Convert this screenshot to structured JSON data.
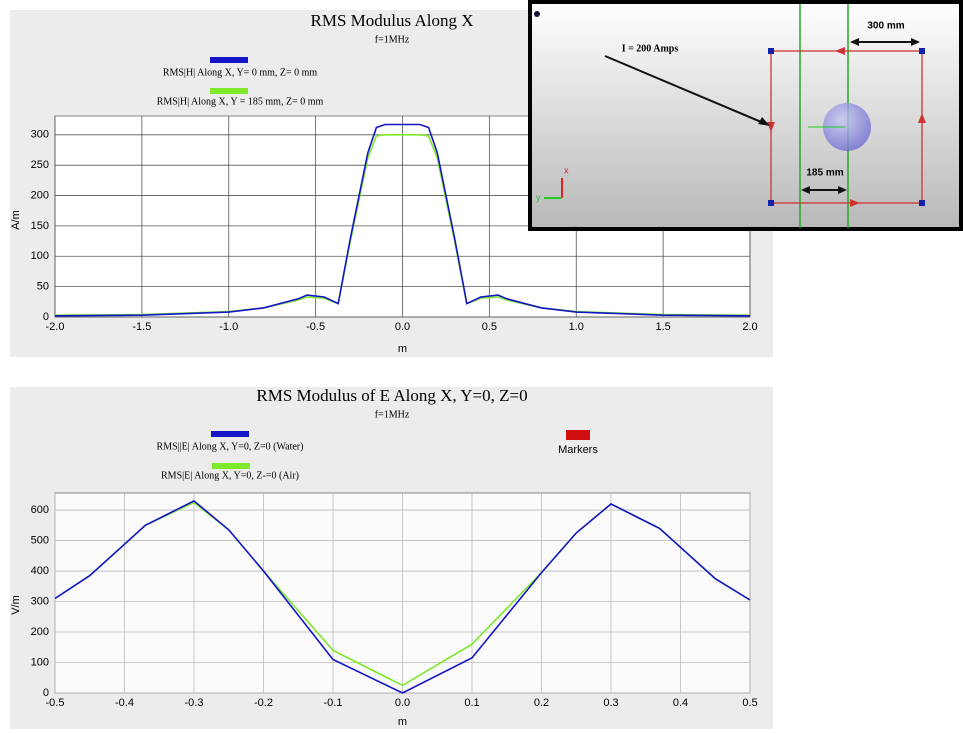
{
  "chart_data": [
    {
      "type": "line",
      "title": "RMS Modulus Along X",
      "subtitle": "f=1MHz",
      "x_label": "m",
      "y_label": "A/m",
      "x": [
        -2.0,
        -1.5,
        -1.0,
        -0.8,
        -0.6,
        -0.55,
        -0.45,
        -0.37,
        -0.3,
        -0.2,
        -0.15,
        -0.1,
        0.0,
        0.1,
        0.15,
        0.2,
        0.3,
        0.37,
        0.45,
        0.55,
        0.6,
        0.8,
        1.0,
        1.5,
        2.0
      ],
      "series": [
        {
          "name": "RMS|H| Along X, Y= 0 mm, Z= 0 mm",
          "color": "#1515c8",
          "values": [
            2,
            3,
            8,
            15,
            30,
            36,
            33,
            22,
            130,
            270,
            312,
            317,
            317,
            317,
            312,
            270,
            130,
            22,
            33,
            36,
            30,
            15,
            8,
            3,
            2
          ]
        },
        {
          "name": "RMS|H| Along X, Y = 185 mm, Z= 0 mm",
          "color": "#7ee82a",
          "values": [
            3,
            4,
            9,
            15,
            28,
            33,
            31,
            22,
            125,
            262,
            298,
            300,
            300,
            300,
            298,
            262,
            125,
            22,
            31,
            33,
            28,
            15,
            9,
            4,
            3
          ]
        }
      ],
      "xlim": [
        -2.0,
        2.0
      ],
      "ylim": [
        0,
        331
      ],
      "xticks": [
        {
          "value": -2,
          "label": "-2.0"
        },
        {
          "value": -1.5,
          "label": "-1.5"
        },
        {
          "value": -1,
          "label": "-1.0"
        },
        {
          "value": -0.5,
          "label": "-0.5"
        },
        {
          "value": 0,
          "label": "0.0"
        },
        {
          "value": 0.5,
          "label": "0.5"
        },
        {
          "value": 1,
          "label": "1.0"
        },
        {
          "value": 1.5,
          "label": "1.5"
        },
        {
          "value": 2,
          "label": "2.0"
        }
      ],
      "yticks": [
        0,
        50,
        100,
        150,
        200,
        250,
        300
      ],
      "grid": true
    },
    {
      "type": "line",
      "title": "RMS Modulus of E Along X, Y=0, Z=0",
      "subtitle": "f=1MHz",
      "x_label": "m",
      "y_label": "V/m",
      "x": [
        -0.5,
        -0.45,
        -0.37,
        -0.3,
        -0.25,
        -0.2,
        -0.1,
        0.0,
        0.1,
        0.2,
        0.25,
        0.3,
        0.37,
        0.45,
        0.5
      ],
      "series": [
        {
          "name": "RMS||E| Along X, Y=0, Z=0 (Water)",
          "color": "#1515c8",
          "values": [
            310,
            385,
            550,
            630,
            535,
            400,
            110,
            0,
            115,
            395,
            525,
            620,
            540,
            375,
            305
          ]
        },
        {
          "name": "RMS|E| Along X, Y=0, Z-=0 (Air)",
          "color": "#7ee82a",
          "values": [
            310,
            385,
            550,
            625,
            535,
            400,
            140,
            25,
            160,
            395,
            525,
            620,
            540,
            375,
            305
          ]
        },
        {
          "name": "Markers",
          "color": "#d01010",
          "values": [
            null,
            null,
            null,
            null,
            null,
            null,
            null,
            null,
            null,
            null,
            null,
            null,
            null,
            null,
            null
          ]
        }
      ],
      "xlim": [
        -0.5,
        0.5
      ],
      "ylim": [
        0,
        656
      ],
      "xticks": [
        -0.5,
        -0.4,
        -0.3,
        -0.2,
        -0.1,
        {
          "value": 0,
          "label": "0.0"
        },
        0.1,
        0.2,
        0.3,
        0.4,
        0.5
      ],
      "yticks": [
        0,
        100,
        200,
        300,
        400,
        500,
        600
      ],
      "grid": true
    }
  ],
  "inset": {
    "current_label": "I = 200 Amps",
    "width_label": "300 mm",
    "offset_label": "185 mm",
    "axis_x": "x",
    "axis_y": "y"
  }
}
